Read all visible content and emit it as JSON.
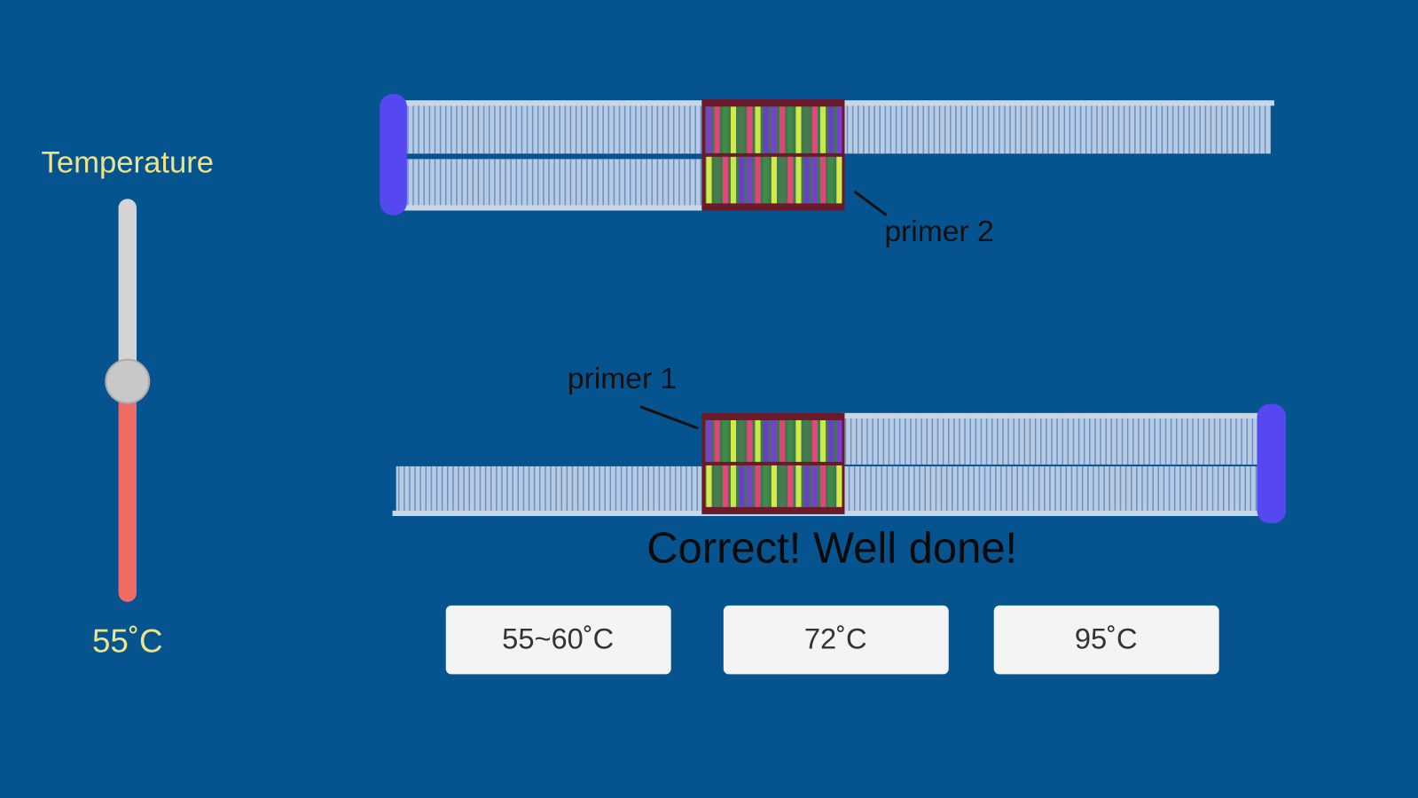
{
  "slider": {
    "label": "Temperature",
    "value_label": "55˚C"
  },
  "diagram": {
    "primer_2": "primer 2",
    "primer_1": "primer 1"
  },
  "feedback": "Correct! Well done!",
  "buttons": [
    "55~60˚C",
    "72˚C",
    "95˚C"
  ]
}
